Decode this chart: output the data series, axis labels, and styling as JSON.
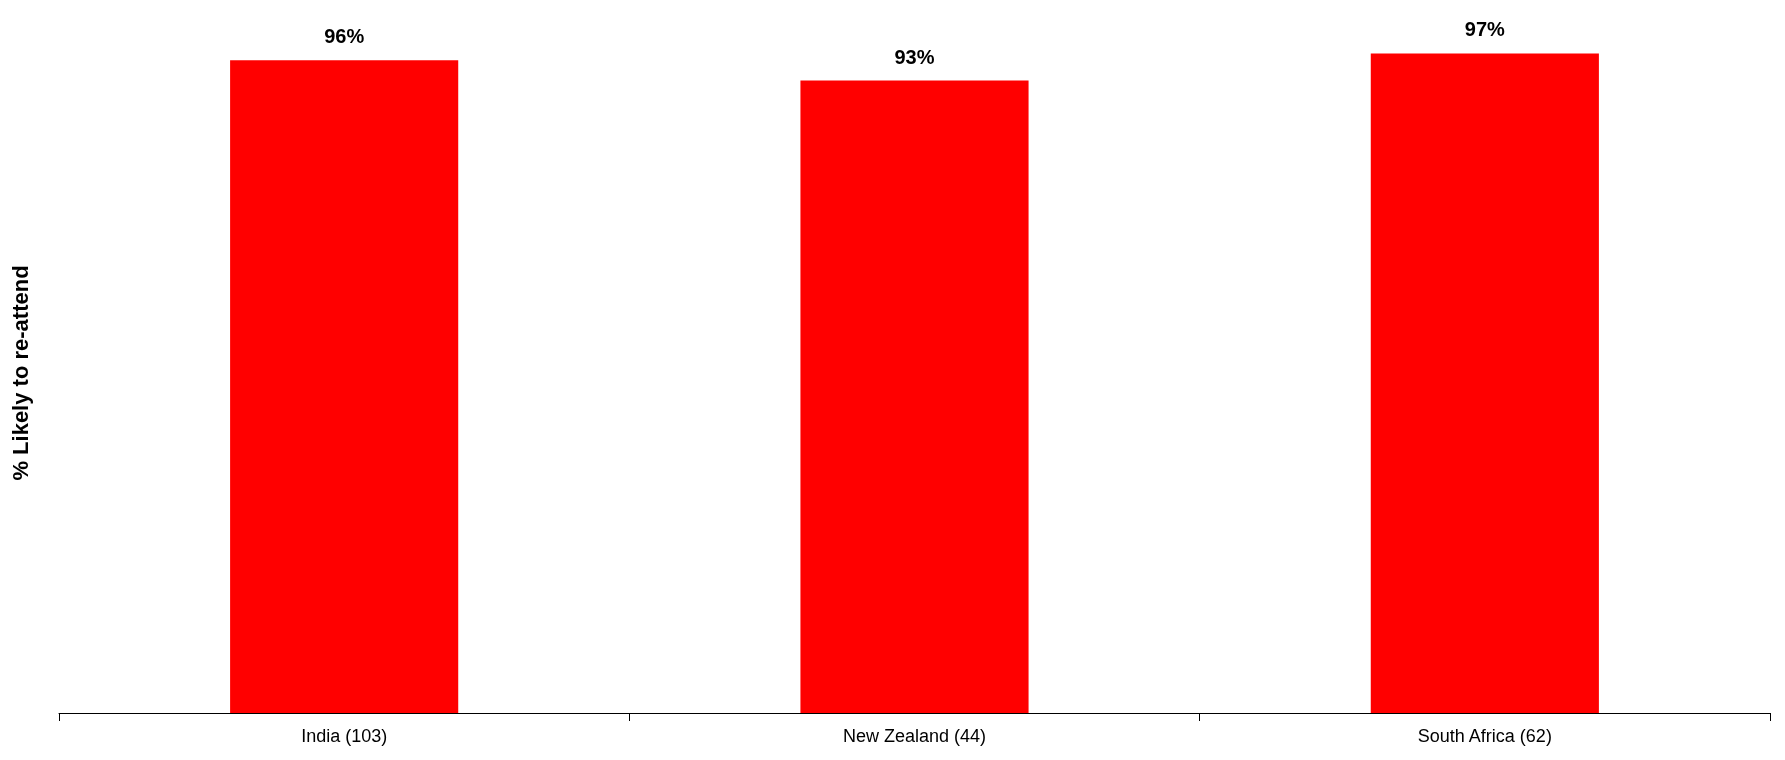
{
  "chart_data": {
    "type": "bar",
    "ylabel": "% Likely to re-attend",
    "categories": [
      "India (103)",
      "New Zealand (44)",
      "South Africa (62)"
    ],
    "values": [
      96,
      93,
      97
    ],
    "color": "#ff0000",
    "value_labels": [
      "96%",
      "93%",
      "97%"
    ],
    "grid": false,
    "tick_labels": "x"
  }
}
